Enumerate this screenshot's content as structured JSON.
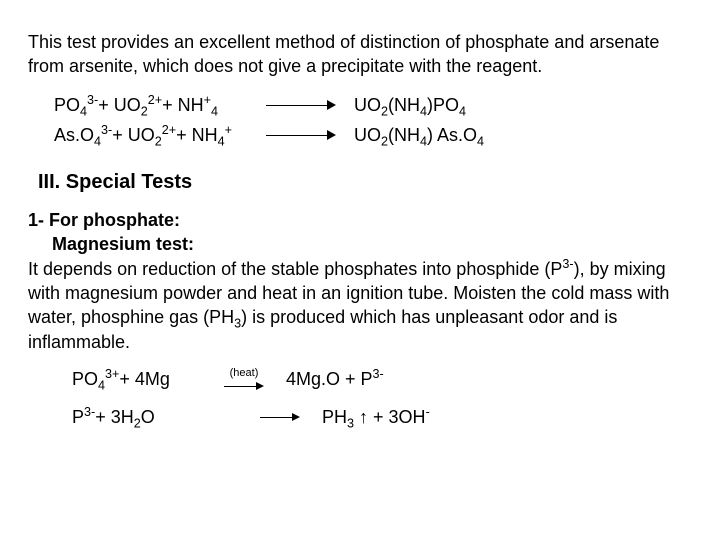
{
  "intro": "This test provides an excellent method of distinction of phosphate and arsenate from arsenite, which does not give a precipitate with the reagent.",
  "eq1": {
    "lhs_html": "PO<sub>4</sub><sup>3-</sup>+ UO<sub>2</sub><sup>2+</sup>+ NH<sup>+</sup><sub>4</sub>",
    "rhs_html": "UO<sub>2</sub>(NH<sub>4</sub>)PO<sub>4</sub>"
  },
  "eq2": {
    "lhs_html": "As.O<sub>4</sub><sup>3-</sup>+ UO<sub>2</sub><sup>2+</sup>+ NH<sub>4</sub><sup>+</sup>",
    "rhs_html": "UO<sub>2</sub>(NH<sub>4</sub>) As.O<sub>4</sub>"
  },
  "section_heading": "III. Special Tests",
  "phosphate_title": "1- For phosphate:",
  "mg_test_title": "Magnesium test:",
  "mg_test_body_html": "It depends on reduction of the stable phosphates into phosphide (P<sup>3-</sup>), by mixing with magnesium powder and heat in an ignition tube. Moisten the cold mass with water, phosphine gas (PH<sub>3</sub>) is produced which has unpleasant odor and is inflammable.",
  "eq3": {
    "lhs_html": "PO<sub>4</sub><sup>3+</sup>+ 4Mg",
    "label": "(heat)",
    "rhs_html": "4Mg.O + P<sup>3-</sup>"
  },
  "eq4": {
    "lhs_html": "P<sup>3-</sup>+ 3H<sub>2</sub>O",
    "rhs_html": "PH<sub>3</sub> &uarr;  + 3OH<sup>-</sup>"
  }
}
